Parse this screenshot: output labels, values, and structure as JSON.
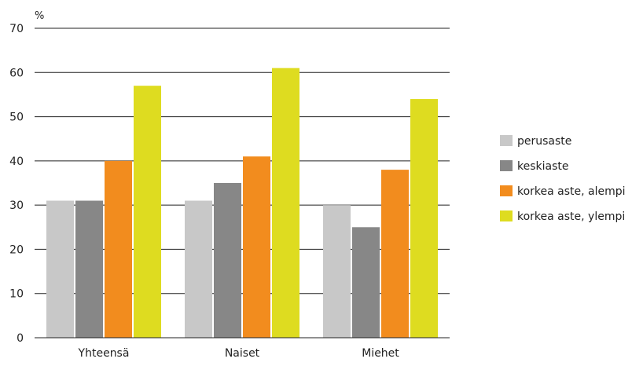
{
  "chart_data": {
    "type": "bar",
    "ylabel": "%",
    "ylim": [
      0,
      70
    ],
    "yticks": [
      0,
      10,
      20,
      30,
      40,
      50,
      60,
      70
    ],
    "grid": true,
    "legend_position": "right",
    "categories": [
      "Yhteensä",
      "Naiset",
      "Miehet"
    ],
    "series": [
      {
        "name": "perusaste",
        "color": "#c8c8c8",
        "values": [
          31,
          31,
          30
        ]
      },
      {
        "name": "keskiaste",
        "color": "#878787",
        "values": [
          31,
          35,
          25
        ]
      },
      {
        "name": "korkea aste, alempi",
        "color": "#f28c1e",
        "values": [
          40,
          41,
          38
        ]
      },
      {
        "name": "korkea aste, ylempi",
        "color": "#dedc20",
        "values": [
          57,
          61,
          54
        ]
      }
    ]
  }
}
